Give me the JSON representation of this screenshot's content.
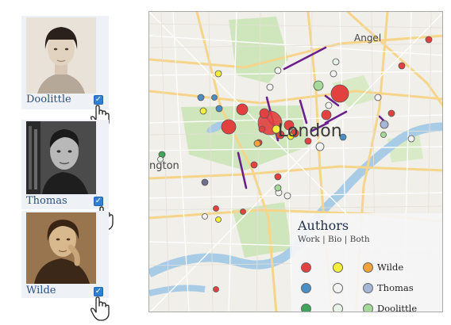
{
  "authors": [
    {
      "name": "Doolittle",
      "checked": true
    },
    {
      "name": "Thomas",
      "checked": true
    },
    {
      "name": "Wilde",
      "checked": true
    }
  ],
  "map": {
    "labels": {
      "angel": "Angel",
      "london": "London",
      "paddington_fragment": "ngton"
    },
    "legend": {
      "title": "Authors",
      "subtitle": "Work | Bio | Both",
      "rows": [
        {
          "author": "Wilde",
          "colors": [
            "#e3413f",
            "#f4ee3c",
            "#f1a23a"
          ]
        },
        {
          "author": "Thomas",
          "colors": [
            "#4a8ec3",
            "#f2f2f2",
            "#a6b6d6"
          ]
        },
        {
          "author": "Doolittle",
          "colors": [
            "#3ea55b",
            "#e6f3e6",
            "#a7d89b"
          ]
        }
      ]
    },
    "colors": {
      "water": "#a8cbe6",
      "park": "#cfe6bd",
      "walk": "#6b1f8c"
    }
  }
}
